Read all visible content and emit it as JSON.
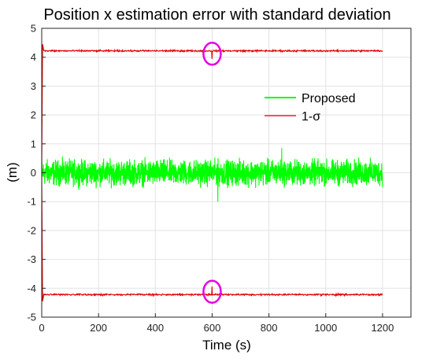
{
  "chart_data": {
    "type": "line",
    "title": "Position x estimation error with standard deviation",
    "xlabel": "Time (s)",
    "ylabel": "(m)",
    "xlim": [
      0,
      1300
    ],
    "ylim": [
      -5,
      5
    ],
    "xticks": [
      0,
      200,
      400,
      600,
      800,
      1000,
      1200
    ],
    "yticks": [
      -5,
      -4,
      -3,
      -2,
      -1,
      0,
      1,
      2,
      3,
      4,
      5
    ],
    "grid": true,
    "legend_position": "top-right",
    "series": [
      {
        "name": "Proposed",
        "color": "#00ff00",
        "x_range": [
          0,
          1200
        ],
        "mean": 0,
        "amplitude": 0.35,
        "notable_points": [
          {
            "x": 620,
            "y": -1.0
          },
          {
            "x": 845,
            "y": 0.85
          }
        ]
      },
      {
        "name": "1-σ",
        "color": "#e00000",
        "x_range": [
          0,
          1200
        ],
        "steady_upper": 4.22,
        "steady_lower": -4.22,
        "initial_peak": 4.45,
        "spike_x": 600
      }
    ],
    "annotations": [
      {
        "shape": "ellipse",
        "x": 600,
        "y": 4.12,
        "color": "#e600e6"
      },
      {
        "shape": "ellipse",
        "x": 600,
        "y": -4.12,
        "color": "#e600e6"
      }
    ]
  }
}
